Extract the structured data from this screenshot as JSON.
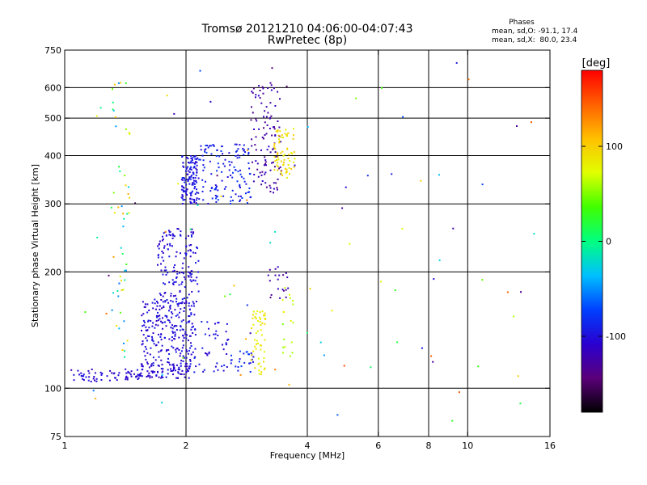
{
  "chart_data": {
    "type": "scatter",
    "title": "Tromsø 20121210 04:06:00-04:07:43",
    "subtitle": "RwPretec (8p)",
    "xlabel": "Frequency [MHz]",
    "ylabel": "Stationary phase Virtual Height [km]",
    "x_scale": "log",
    "y_scale": "log",
    "xlim": [
      1,
      16
    ],
    "ylim": [
      75,
      750
    ],
    "x_ticks": [
      1,
      2,
      4,
      6,
      8,
      10,
      16
    ],
    "y_ticks": [
      75,
      100,
      200,
      300,
      400,
      500,
      600,
      750
    ],
    "x_grid": [
      2,
      4,
      6,
      8,
      10
    ],
    "y_grid": [
      100,
      200,
      300,
      400,
      500,
      600
    ],
    "colorbar": {
      "title": "[deg]",
      "range": [
        -180,
        180
      ],
      "ticks": [
        -100,
        0,
        100
      ],
      "colors": [
        "#000000",
        "#5a007a",
        "#2a00d0",
        "#0040ff",
        "#00c0ff",
        "#00ff80",
        "#40ff00",
        "#e0ff00",
        "#ffc000",
        "#ff6000",
        "#ff0000"
      ]
    },
    "annotations": {
      "heading": "Phases",
      "line1": "mean, sd,O: -91.1, 17.4",
      "line2": "mean, sd,X:  80.0, 23.4"
    },
    "clusters": [
      {
        "x": [
          1.0,
          1.55
        ],
        "y": [
          104,
          112
        ],
        "phase": [
          -120,
          -95
        ],
        "n": 60
      },
      {
        "x": [
          1.5,
          2.05
        ],
        "y": [
          106,
          116
        ],
        "phase": [
          -118,
          -95
        ],
        "n": 90
      },
      {
        "x": [
          1.55,
          2.1
        ],
        "y": [
          115,
          170
        ],
        "phase": [
          -115,
          -90
        ],
        "n": 220
      },
      {
        "x": [
          1.7,
          2.15
        ],
        "y": [
          165,
          260
        ],
        "phase": [
          -115,
          -90
        ],
        "n": 160
      },
      {
        "x": [
          2.05,
          2.55
        ],
        "y": [
          110,
          150
        ],
        "phase": [
          -110,
          -85
        ],
        "n": 50
      },
      {
        "x": [
          1.95,
          2.15
        ],
        "y": [
          300,
          400
        ],
        "phase": [
          -110,
          -85
        ],
        "n": 130
      },
      {
        "x": [
          2.15,
          2.9
        ],
        "y": [
          300,
          430
        ],
        "phase": [
          -105,
          -75
        ],
        "n": 130
      },
      {
        "x": [
          2.55,
          2.95
        ],
        "y": [
          108,
          125
        ],
        "phase": [
          -100,
          -70
        ],
        "n": 25
      },
      {
        "x": [
          2.9,
          3.15
        ],
        "y": [
          108,
          160
        ],
        "phase": [
          75,
          95
        ],
        "n": 55
      },
      {
        "x": [
          2.9,
          3.45
        ],
        "y": [
          320,
          620
        ],
        "phase": [
          -140,
          -110
        ],
        "n": 110
      },
      {
        "x": [
          3.3,
          3.75
        ],
        "y": [
          350,
          470
        ],
        "phase": [
          75,
          105
        ],
        "n": 70
      },
      {
        "x": [
          3.2,
          3.6
        ],
        "y": [
          170,
          210
        ],
        "phase": [
          -140,
          -110
        ],
        "n": 20
      },
      {
        "x": [
          3.45,
          3.7
        ],
        "y": [
          115,
          200
        ],
        "phase": [
          40,
          80
        ],
        "n": 18
      },
      {
        "x": [
          1.3,
          1.45
        ],
        "y": [
          120,
          620
        ],
        "phase": [
          -60,
          120
        ],
        "n": 55
      },
      {
        "x": [
          1.05,
          15.5
        ],
        "y": [
          80,
          700
        ],
        "phase": [
          -160,
          160
        ],
        "n": 85
      }
    ]
  }
}
